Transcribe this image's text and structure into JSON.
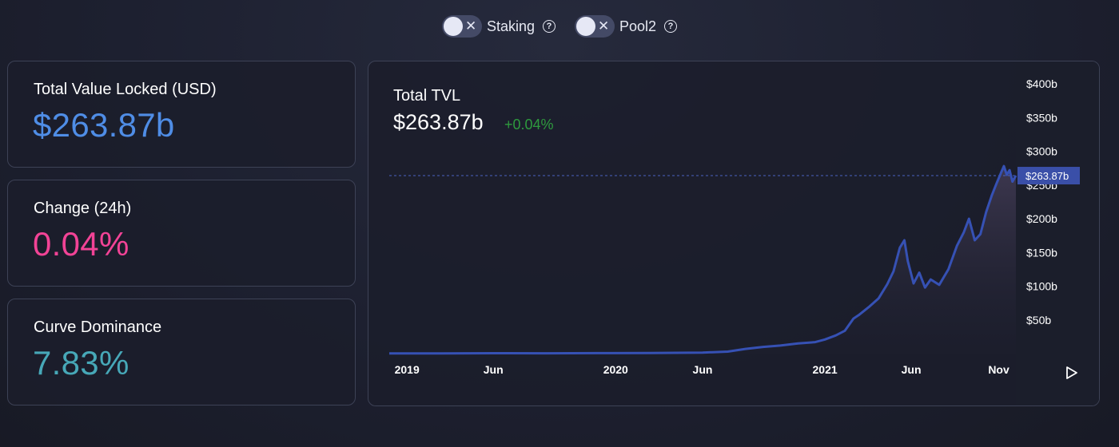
{
  "toggles": [
    {
      "label": "Staking",
      "on": false
    },
    {
      "label": "Pool2",
      "on": false
    }
  ],
  "stats": {
    "tvl_label": "Total Value Locked (USD)",
    "tvl_value": "$263.87b",
    "change_label": "Change (24h)",
    "change_value": "0.04%",
    "dominance_label": "Curve Dominance",
    "dominance_value": "7.83%"
  },
  "colors": {
    "tvl": "#4f8de6",
    "change": "#f24396",
    "dominance": "#47a8b8",
    "positive": "#2e9a3e",
    "line": "#3651b4"
  },
  "chart_header": {
    "title": "Total TVL",
    "value": "$263.87b",
    "change": "+0.04%"
  },
  "chart_data": {
    "type": "area",
    "title": "Total TVL",
    "x_ticks": [
      "2019",
      "Jun",
      "2020",
      "Jun",
      "2021",
      "Jun",
      "Nov"
    ],
    "y_ticks": [
      "$50b",
      "$100b",
      "$150b",
      "$200b",
      "$250b",
      "$300b",
      "$350b",
      "$400b"
    ],
    "ylim": [
      0,
      400
    ],
    "current_value_label": "$263.87b",
    "current_value": 263.87,
    "series": [
      {
        "x": [
          "2018-12-01",
          "2019-03-01",
          "2019-06-01",
          "2019-09-01",
          "2019-12-01",
          "2020-03-01",
          "2020-04-15",
          "2020-06-01",
          "2020-07-15",
          "2020-08-15",
          "2020-09-15",
          "2020-10-15",
          "2020-11-15",
          "2020-12-15",
          "2021-01-01",
          "2021-01-20",
          "2021-02-05",
          "2021-02-20",
          "2021-03-01",
          "2021-03-20",
          "2021-04-05",
          "2021-04-20",
          "2021-05-01",
          "2021-05-12",
          "2021-05-20",
          "2021-05-26",
          "2021-06-05",
          "2021-06-15",
          "2021-06-25",
          "2021-07-05",
          "2021-07-20",
          "2021-08-05",
          "2021-08-20",
          "2021-09-01",
          "2021-09-10",
          "2021-09-20",
          "2021-09-30",
          "2021-10-10",
          "2021-10-20",
          "2021-10-28",
          "2021-11-05",
          "2021-11-10",
          "2021-11-15",
          "2021-11-20",
          "2021-11-25",
          "2021-12-01"
        ],
        "values": [
          0.3,
          0.4,
          0.6,
          0.5,
          0.7,
          0.9,
          1.2,
          1.5,
          3,
          7,
          10,
          12,
          15,
          17,
          21,
          27,
          34,
          52,
          57,
          70,
          82,
          103,
          122,
          157,
          168,
          137,
          104,
          120,
          98,
          110,
          102,
          125,
          160,
          180,
          200,
          168,
          177,
          210,
          235,
          252,
          268,
          278,
          265,
          272,
          255,
          263.87
        ]
      }
    ]
  }
}
